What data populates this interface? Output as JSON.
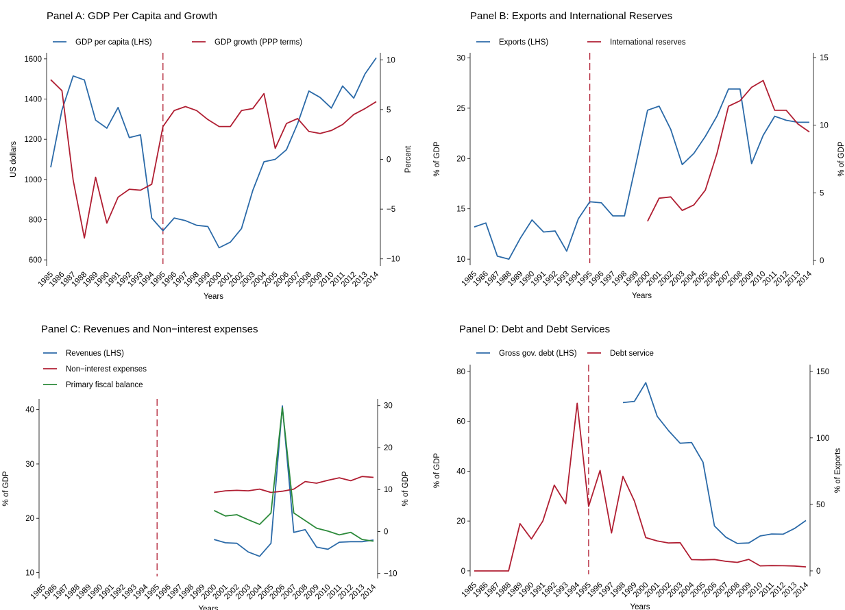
{
  "colors": {
    "blue": "#2b6aa8",
    "red": "#b01e32",
    "green": "#2c8a3a",
    "vline": "#b01e32"
  },
  "chart_data": [
    {
      "type": "line",
      "title": "Panel A: GDP Per Capita and Growth",
      "xlabel": "Years",
      "ylabel_left": "US dollars",
      "ylabel_right": "Percent",
      "ylim_left": [
        580,
        1620
      ],
      "yticks_left": [
        600,
        800,
        1000,
        1200,
        1400,
        1600
      ],
      "ylim_right": [
        -10.5,
        10.5
      ],
      "yticks_right": [
        -10,
        -5,
        0,
        5,
        10
      ],
      "x": [
        1985,
        1986,
        1987,
        1988,
        1989,
        1990,
        1991,
        1992,
        1993,
        1994,
        1995,
        1996,
        1997,
        1998,
        1999,
        2000,
        2001,
        2002,
        2003,
        2004,
        2005,
        2006,
        2007,
        2008,
        2009,
        2010,
        2011,
        2012,
        2013,
        2014
      ],
      "vline_x": 1995,
      "legend_position": "top",
      "grid": false,
      "series": [
        {
          "name": "GDP per capita (LHS)",
          "axis": "left",
          "color": "blue",
          "values": [
            1060,
            1345,
            1515,
            1495,
            1295,
            1255,
            1358,
            1208,
            1222,
            808,
            745,
            808,
            795,
            772,
            766,
            660,
            688,
            756,
            945,
            1088,
            1100,
            1148,
            1278,
            1440,
            1408,
            1355,
            1465,
            1405,
            1525,
            1605
          ]
        },
        {
          "name": "GDP growth (PPP terms)",
          "axis": "right",
          "color": "red",
          "values": [
            8.0,
            6.9,
            -2.1,
            -7.9,
            -1.8,
            -6.4,
            -3.8,
            -3.0,
            -3.1,
            -2.5,
            3.3,
            4.9,
            5.3,
            4.9,
            4.0,
            3.3,
            3.3,
            4.9,
            5.1,
            6.6,
            1.1,
            3.6,
            4.1,
            2.8,
            2.6,
            2.9,
            3.5,
            4.5,
            5.1,
            5.8
          ]
        }
      ]
    },
    {
      "type": "line",
      "title": "Panel B: Exports and International Reserves",
      "xlabel": "Years",
      "ylabel_left": "% of GDP",
      "ylabel_right": "% of GDP",
      "ylim_left": [
        9.6,
        30.3
      ],
      "yticks_left": [
        10,
        15,
        20,
        25,
        30
      ],
      "ylim_right": [
        -0.2,
        15.2
      ],
      "yticks_right": [
        0,
        5,
        10,
        15
      ],
      "x": [
        1985,
        1986,
        1987,
        1988,
        1989,
        1990,
        1991,
        1992,
        1993,
        1994,
        1995,
        1996,
        1997,
        1998,
        1999,
        2000,
        2001,
        2002,
        2003,
        2004,
        2005,
        2006,
        2007,
        2008,
        2009,
        2010,
        2011,
        2012,
        2013,
        2014
      ],
      "vline_x": 1995,
      "legend_position": "top",
      "grid": false,
      "series": [
        {
          "name": "Exports (LHS)",
          "axis": "left",
          "color": "blue",
          "values": [
            13.2,
            13.6,
            10.3,
            10.0,
            12.1,
            13.9,
            12.7,
            12.8,
            10.8,
            14.0,
            15.7,
            15.6,
            14.3,
            14.3,
            19.5,
            24.8,
            25.2,
            22.9,
            19.4,
            20.5,
            22.2,
            24.2,
            26.9,
            26.9,
            19.5,
            22.3,
            24.2,
            23.8,
            23.6,
            23.6
          ]
        },
        {
          "name": "International reserves",
          "axis": "right",
          "color": "red",
          "values": [
            null,
            null,
            null,
            null,
            null,
            null,
            null,
            null,
            null,
            null,
            null,
            null,
            null,
            null,
            null,
            2.9,
            4.6,
            4.7,
            3.7,
            4.1,
            5.2,
            7.9,
            11.4,
            11.8,
            12.8,
            13.3,
            11.1,
            11.1,
            10.1,
            9.5
          ]
        }
      ]
    },
    {
      "type": "line",
      "title": "Panel C: Revenues and Non−interest expenses",
      "xlabel": "Years",
      "ylabel_left": "% of GDP",
      "ylabel_right": "% of GDP",
      "ylim_left": [
        9.3,
        41.6
      ],
      "yticks_left": [
        10,
        20,
        30,
        40
      ],
      "ylim_right": [
        -10.7,
        31.1
      ],
      "yticks_right": [
        -10,
        0,
        10,
        20,
        30
      ],
      "x": [
        1985,
        1986,
        1987,
        1988,
        1989,
        1990,
        1991,
        1992,
        1993,
        1994,
        1995,
        1996,
        1997,
        1998,
        1999,
        2000,
        2001,
        2002,
        2003,
        2004,
        2005,
        2006,
        2007,
        2008,
        2009,
        2010,
        2011,
        2012,
        2013,
        2014
      ],
      "vline_x": 1995,
      "legend_position": "top",
      "grid": false,
      "series": [
        {
          "name": "Revenues (LHS)",
          "axis": "left",
          "color": "blue",
          "values": [
            null,
            null,
            null,
            null,
            null,
            null,
            null,
            null,
            null,
            null,
            null,
            null,
            null,
            null,
            null,
            16.1,
            15.5,
            15.4,
            13.8,
            13.0,
            15.4,
            40.7,
            17.4,
            17.9,
            14.7,
            14.3,
            15.6,
            15.7,
            15.7,
            16.0
          ]
        },
        {
          "name": "Non−interest expenses",
          "axis": "right",
          "color": "red",
          "values": [
            null,
            null,
            null,
            null,
            null,
            null,
            null,
            null,
            null,
            null,
            null,
            null,
            null,
            null,
            null,
            9.3,
            9.7,
            9.8,
            9.7,
            10.1,
            9.3,
            9.6,
            10.1,
            11.9,
            11.5,
            12.2,
            12.8,
            12.1,
            13.1,
            12.9
          ]
        },
        {
          "name": "Primary fiscal balance",
          "axis": "right",
          "color": "green",
          "values": [
            null,
            null,
            null,
            null,
            null,
            null,
            null,
            null,
            null,
            null,
            null,
            null,
            null,
            null,
            null,
            5.0,
            3.7,
            4.0,
            2.8,
            1.7,
            4.4,
            29.5,
            4.4,
            2.6,
            0.8,
            0.1,
            -0.8,
            -0.2,
            -1.9,
            -2.3
          ]
        }
      ]
    },
    {
      "type": "line",
      "title": "Panel D: Debt and Debt Services",
      "xlabel": "Years",
      "ylabel_left": "% of GDP",
      "ylabel_right": "% of Exports",
      "ylim_left": [
        -1.4,
        81.9
      ],
      "yticks_left": [
        0,
        20,
        40,
        60,
        80
      ],
      "ylim_right": [
        -2.6,
        153.5
      ],
      "yticks_right": [
        0,
        50,
        100,
        150
      ],
      "x": [
        1985,
        1986,
        1987,
        1988,
        1989,
        1990,
        1991,
        1992,
        1993,
        1994,
        1995,
        1996,
        1997,
        1998,
        1999,
        2000,
        2001,
        2002,
        2003,
        2004,
        2005,
        2006,
        2007,
        2008,
        2009,
        2010,
        2011,
        2012,
        2013,
        2014
      ],
      "vline_x": 1995,
      "legend_position": "top",
      "grid": false,
      "series": [
        {
          "name": "Gross gov. debt (LHS)",
          "axis": "left",
          "color": "blue",
          "values": [
            null,
            null,
            null,
            null,
            null,
            null,
            null,
            null,
            null,
            null,
            null,
            null,
            null,
            67.5,
            68.0,
            75.5,
            62.0,
            56.2,
            51.2,
            51.5,
            43.6,
            18.0,
            13.5,
            11.0,
            11.2,
            14.0,
            14.8,
            14.7,
            17.0,
            20.2
          ]
        },
        {
          "name": "Debt service",
          "axis": "right",
          "color": "red",
          "values": [
            0,
            0,
            0,
            0,
            35.5,
            24.0,
            37.5,
            64.5,
            50.5,
            126.0,
            48.5,
            75.5,
            28.5,
            71.0,
            52.5,
            25.0,
            22.5,
            21.0,
            21.2,
            8.5,
            8.3,
            8.6,
            7.2,
            6.4,
            8.7,
            3.8,
            4.0,
            3.9,
            3.7,
            3.0
          ]
        }
      ]
    }
  ]
}
